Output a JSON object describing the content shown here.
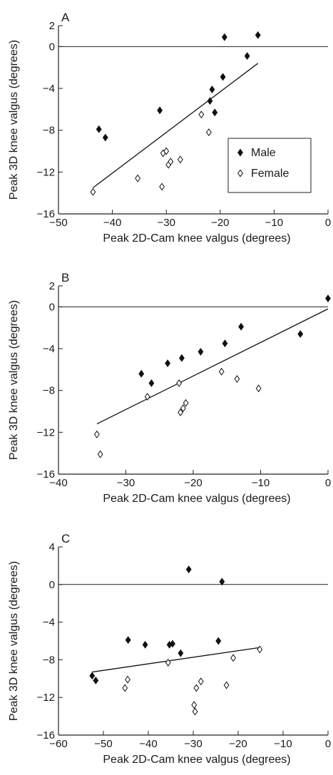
{
  "chart_data": [
    {
      "type": "scatter",
      "panel": "A",
      "xlabel": "Peak 2D-Cam knee valgus (degrees)",
      "ylabel": "Peak 3D knee valgus (degrees)",
      "xlim": [
        -50,
        0
      ],
      "ylim": [
        -16,
        2
      ],
      "xticks": [
        "-50",
        "-40",
        "-30",
        "-20",
        "-10",
        "0"
      ],
      "yticks": [
        "2",
        "0",
        "-4",
        "-8",
        "-12",
        "-16"
      ],
      "legend": {
        "placement": "inside-right",
        "entries": [
          "Male",
          "Female"
        ]
      },
      "zero_line": true,
      "series": [
        {
          "name": "Male",
          "marker": "filled-diamond",
          "points": [
            [
              -42.5,
              -7.9
            ],
            [
              -41.3,
              -8.7
            ],
            [
              -31.2,
              -6.1
            ],
            [
              -21.9,
              -5.2
            ],
            [
              -21.5,
              -4.1
            ],
            [
              -21.0,
              -6.3
            ],
            [
              -19.5,
              -2.9
            ],
            [
              -19.2,
              0.9
            ],
            [
              -15.0,
              -0.9
            ],
            [
              -13.0,
              1.1
            ]
          ]
        },
        {
          "name": "Female",
          "marker": "open-diamond",
          "points": [
            [
              -43.6,
              -13.9
            ],
            [
              -35.3,
              -12.6
            ],
            [
              -30.8,
              -13.4
            ],
            [
              -30.6,
              -10.2
            ],
            [
              -30.0,
              -10.0
            ],
            [
              -29.6,
              -11.3
            ],
            [
              -29.2,
              -11.0
            ],
            [
              -27.4,
              -10.8
            ],
            [
              -23.5,
              -6.5
            ],
            [
              -22.1,
              -8.2
            ]
          ]
        }
      ],
      "regression": {
        "x": [
          -43.6,
          -13.0
        ],
        "y": [
          -13.5,
          -1.6
        ]
      }
    },
    {
      "type": "scatter",
      "panel": "B",
      "xlabel": "Peak 2D-Cam knee valgus (degrees)",
      "ylabel": "Peak 3D knee valgus (degrees)",
      "xlim": [
        -40,
        0
      ],
      "ylim": [
        -16,
        2
      ],
      "xticks": [
        "-40",
        "-30",
        "-20",
        "-10",
        "0"
      ],
      "yticks": [
        "2",
        "0",
        "-4",
        "-8",
        "-12",
        "-16"
      ],
      "zero_line": true,
      "series": [
        {
          "name": "Male",
          "marker": "filled-diamond",
          "points": [
            [
              -27.7,
              -6.4
            ],
            [
              -26.2,
              -7.3
            ],
            [
              -23.8,
              -5.4
            ],
            [
              -21.7,
              -4.9
            ],
            [
              -18.9,
              -4.3
            ],
            [
              -15.3,
              -3.5
            ],
            [
              -12.9,
              -1.9
            ],
            [
              -4.1,
              -2.6
            ],
            [
              0.0,
              0.8
            ]
          ]
        },
        {
          "name": "Female",
          "marker": "open-diamond",
          "points": [
            [
              -34.3,
              -12.2
            ],
            [
              -33.8,
              -14.1
            ],
            [
              -26.8,
              -8.6
            ],
            [
              -22.1,
              -7.3
            ],
            [
              -21.9,
              -10.1
            ],
            [
              -21.5,
              -9.7
            ],
            [
              -21.1,
              -9.2
            ],
            [
              -15.8,
              -6.2
            ],
            [
              -13.5,
              -6.9
            ],
            [
              -10.3,
              -7.8
            ]
          ]
        }
      ],
      "regression": {
        "x": [
          -34.3,
          0.0
        ],
        "y": [
          -11.2,
          -0.2
        ]
      }
    },
    {
      "type": "scatter",
      "panel": "C",
      "xlabel": "Peak 2D-Cam knee valgus (degrees)",
      "ylabel": "Peak 3D knee valgus (degrees)",
      "xlim": [
        -60,
        0
      ],
      "ylim": [
        -16,
        4
      ],
      "xticks": [
        "-60",
        "-50",
        "-40",
        "-30",
        "-20",
        "-10",
        "0"
      ],
      "yticks": [
        "4",
        "0",
        "-4",
        "-8",
        "-12",
        "-16"
      ],
      "zero_line": true,
      "series": [
        {
          "name": "Male",
          "marker": "filled-diamond",
          "points": [
            [
              -52.5,
              -9.7
            ],
            [
              -51.7,
              -10.2
            ],
            [
              -44.5,
              -5.9
            ],
            [
              -40.7,
              -6.4
            ],
            [
              -35.3,
              -6.4
            ],
            [
              -34.6,
              -6.3
            ],
            [
              -32.8,
              -7.3
            ],
            [
              -31.0,
              1.6
            ],
            [
              -24.4,
              -6.0
            ],
            [
              -23.6,
              0.3
            ]
          ]
        },
        {
          "name": "Female",
          "marker": "open-diamond",
          "points": [
            [
              -45.2,
              -11.0
            ],
            [
              -44.6,
              -10.1
            ],
            [
              -35.6,
              -8.3
            ],
            [
              -29.8,
              -12.8
            ],
            [
              -29.6,
              -13.5
            ],
            [
              -29.3,
              -11.0
            ],
            [
              -28.3,
              -10.3
            ],
            [
              -22.6,
              -10.7
            ],
            [
              -21.1,
              -7.8
            ],
            [
              -15.2,
              -6.9
            ]
          ]
        }
      ],
      "regression": {
        "x": [
          -52.5,
          -15.2
        ],
        "y": [
          -9.3,
          -6.7
        ]
      }
    }
  ]
}
